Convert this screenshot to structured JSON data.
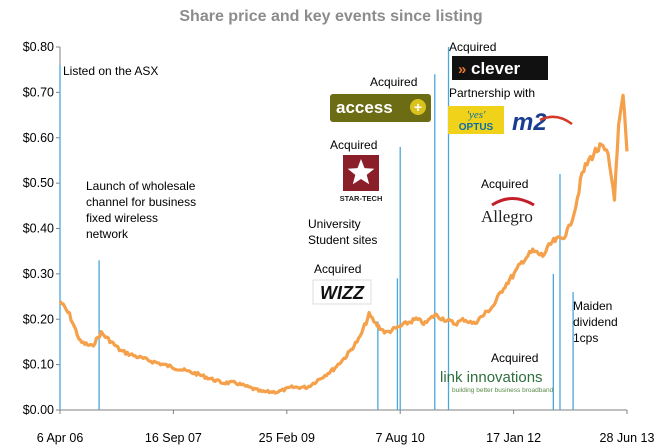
{
  "chart_data": {
    "type": "line",
    "title": "Share price and key events since listing",
    "xlabel": "",
    "ylabel": "",
    "ylim": [
      0,
      0.8
    ],
    "y_ticks": [
      "$0.00",
      "$0.10",
      "$0.20",
      "$0.30",
      "$0.40",
      "$0.50",
      "$0.60",
      "$0.70",
      "$0.80"
    ],
    "x_range": [
      "2006-04-06",
      "2013-06-28"
    ],
    "x_ticks": [
      {
        "date": "2006-04-06",
        "label": "6 Apr 06"
      },
      {
        "date": "2007-09-16",
        "label": "16 Sep 07"
      },
      {
        "date": "2009-02-25",
        "label": "25 Feb 09"
      },
      {
        "date": "2010-08-07",
        "label": "7 Aug 10"
      },
      {
        "date": "2012-01-17",
        "label": "17 Jan 12"
      },
      {
        "date": "2013-06-28",
        "label": "28 Jun 13"
      }
    ],
    "grid": false,
    "line_color": "#f5a04a",
    "marker_color": "#4aa8d8",
    "series": [
      {
        "x": [
          "2006-04-06",
          "2006-05-20",
          "2006-07-10",
          "2006-09-01",
          "2006-10-15",
          "2006-12-01",
          "2007-01-15",
          "2007-03-15",
          "2007-05-20",
          "2007-08-01",
          "2007-10-15",
          "2008-01-01",
          "2008-03-01",
          "2008-05-01",
          "2008-07-01",
          "2008-09-01",
          "2008-11-01",
          "2009-01-15",
          "2009-03-20",
          "2009-06-01",
          "2009-08-01",
          "2009-10-01",
          "2009-12-01",
          "2010-02-01",
          "2010-03-15",
          "2010-04-15",
          "2010-06-01",
          "2010-07-20",
          "2010-09-01",
          "2010-10-20",
          "2010-12-01",
          "2011-01-15",
          "2011-03-01",
          "2011-04-20",
          "2011-06-01",
          "2011-07-15",
          "2011-09-01",
          "2011-10-15",
          "2011-12-01",
          "2012-01-20",
          "2012-03-01",
          "2012-04-15",
          "2012-06-01",
          "2012-07-15",
          "2012-09-01",
          "2012-10-01",
          "2012-11-01",
          "2012-12-01",
          "2013-01-01",
          "2013-02-01",
          "2013-03-01",
          "2013-04-01",
          "2013-05-01",
          "2013-05-20",
          "2013-06-10",
          "2013-06-28"
        ],
        "y": [
          0.24,
          0.21,
          0.15,
          0.14,
          0.17,
          0.15,
          0.13,
          0.12,
          0.11,
          0.1,
          0.09,
          0.08,
          0.07,
          0.06,
          0.06,
          0.05,
          0.04,
          0.04,
          0.05,
          0.05,
          0.07,
          0.09,
          0.12,
          0.16,
          0.21,
          0.19,
          0.17,
          0.18,
          0.19,
          0.2,
          0.19,
          0.21,
          0.2,
          0.19,
          0.2,
          0.19,
          0.21,
          0.23,
          0.27,
          0.3,
          0.33,
          0.35,
          0.34,
          0.37,
          0.38,
          0.4,
          0.45,
          0.52,
          0.55,
          0.57,
          0.58,
          0.56,
          0.47,
          0.62,
          0.69,
          0.57
        ]
      }
    ],
    "annotations": [
      {
        "date": "2006-04-06",
        "y_top": 0.76,
        "lines": [
          "Listed on the ASX"
        ]
      },
      {
        "date": "2006-10-05",
        "y_top": 0.33,
        "lines": [
          "Launch of wholesale",
          "channel  for business",
          "fixed wireless",
          "network"
        ]
      },
      {
        "date": "2010-04-25",
        "y_top": 0.195,
        "lines": [
          "Acquired"
        ],
        "logo": "wizz-logo"
      },
      {
        "date": "2010-07-25",
        "y_top": 0.29,
        "lines": [
          "University",
          "Student sites"
        ]
      },
      {
        "date": "2010-08-07",
        "y_top": 0.58,
        "lines": [
          "Acquired"
        ],
        "logo": "star-tech-logo"
      },
      {
        "date": "2011-01-15",
        "y_top": 0.74,
        "lines": [
          "Acquired"
        ],
        "logo": "access-logo"
      },
      {
        "date": "2011-03-20",
        "y_top": 0.8,
        "lines": [
          "Acquired",
          "Partnership with"
        ],
        "logo": "clever-logo"
      },
      {
        "date": "2012-07-20",
        "y_top": 0.3,
        "lines": [
          "Acquired"
        ],
        "logo": "link-innovations-logo"
      },
      {
        "date": "2012-08-20",
        "y_top": 0.52,
        "lines": [
          "Acquired"
        ],
        "logo": "allegro-logo"
      },
      {
        "date": "2012-10-20",
        "y_top": 0.26,
        "lines": [
          "Maiden",
          "dividend",
          "1cps"
        ]
      }
    ],
    "logos": {
      "wizz": "WIZZ",
      "star_tech": "STAR-TECH",
      "access": "access",
      "clever": "clever",
      "yes_optus": "'yes' OPTUS",
      "m2": "m2",
      "allegro": "Allegro",
      "link": "link innovations",
      "link_tagline": "building better business broadband"
    }
  }
}
